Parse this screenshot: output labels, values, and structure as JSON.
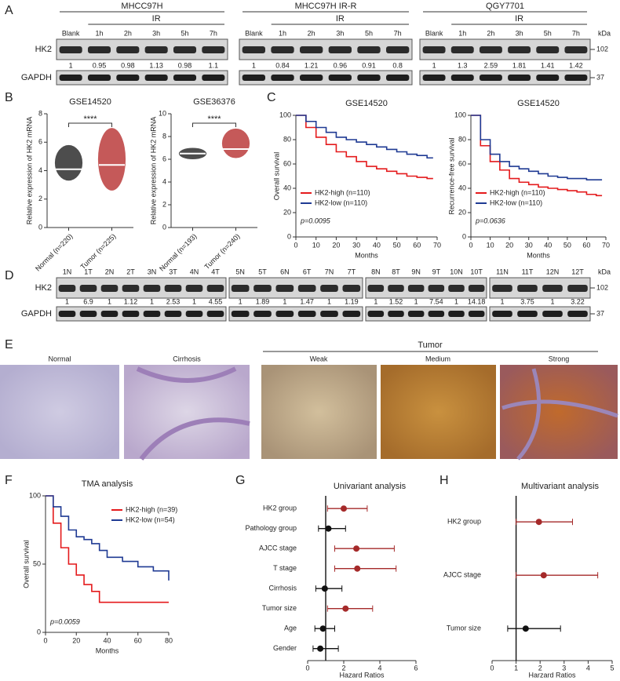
{
  "panels": {
    "A": {
      "label": "A",
      "unit": "kDa",
      "rows": [
        {
          "name": "HK2",
          "size": 102
        },
        {
          "name": "GAPDH",
          "size": 37
        }
      ],
      "groups": [
        {
          "title": "MHCC97H",
          "treatment": "IR",
          "lanes": [
            "Blank",
            "1h",
            "2h",
            "3h",
            "5h",
            "7h"
          ],
          "ratios": [
            1,
            0.95,
            0.98,
            1.13,
            0.98,
            1.1
          ]
        },
        {
          "title": "MHCC97H IR-R",
          "treatment": "IR",
          "lanes": [
            "Blank",
            "1h",
            "2h",
            "3h",
            "5h",
            "7h"
          ],
          "ratios": [
            1,
            0.84,
            1.21,
            0.96,
            0.91,
            0.8
          ]
        },
        {
          "title": "QGY7701",
          "treatment": "IR",
          "lanes": [
            "Blank",
            "1h",
            "2h",
            "3h",
            "5h",
            "7h"
          ],
          "ratios": [
            1,
            1.3,
            2.59,
            1.81,
            1.41,
            1.42
          ]
        }
      ]
    },
    "B": {
      "label": "B",
      "charts": [
        {
          "type": "scatter",
          "title": "GSE14520",
          "y_label": "Relative expression of HK2 mRNA",
          "significance": "****",
          "ylim": [
            0,
            8
          ],
          "yticks": [
            0,
            2,
            4,
            6,
            8
          ],
          "series": [
            {
              "name": "Normal (n=220)",
              "color": "#111111",
              "mean": 4.1,
              "min": 3.3,
              "max": 5.8
            },
            {
              "name": "Tumor (n=225)",
              "color": "#b22222",
              "mean": 4.4,
              "min": 2.6,
              "max": 7.0
            }
          ]
        },
        {
          "type": "scatter",
          "title": "GSE36376",
          "y_label": "Relative expression of HK2 mRNA",
          "significance": "****",
          "ylim": [
            0,
            10
          ],
          "yticks": [
            0,
            2,
            4,
            6,
            8,
            10
          ],
          "series": [
            {
              "name": "Normal (n=193)",
              "color": "#111111",
              "mean": 6.5,
              "min": 6.0,
              "max": 7.0
            },
            {
              "name": "Tumor (n=240)",
              "color": "#b22222",
              "mean": 6.9,
              "min": 6.1,
              "max": 8.7
            }
          ]
        }
      ]
    },
    "C": {
      "label": "C",
      "charts": [
        {
          "type": "line",
          "title": "GSE14520",
          "y_label": "Overall survival",
          "x_label": "Months",
          "p_value": "p=0.0095",
          "xlim": [
            0,
            70
          ],
          "xticks": [
            0,
            10,
            20,
            30,
            40,
            50,
            60,
            70
          ],
          "ylim": [
            0,
            100
          ],
          "yticks": [
            0,
            20,
            40,
            60,
            80,
            100
          ],
          "x": [
            0,
            5,
            10,
            15,
            20,
            25,
            30,
            35,
            40,
            45,
            50,
            55,
            60,
            65,
            68
          ],
          "series": [
            {
              "name": "HK2-high (n=110)",
              "color": "#e41a1c",
              "values": [
                100,
                90,
                82,
                76,
                70,
                66,
                62,
                58,
                56,
                54,
                52,
                50,
                49,
                48,
                48
              ]
            },
            {
              "name": "HK2-low (n=110)",
              "color": "#1f3a93",
              "values": [
                100,
                95,
                90,
                86,
                82,
                80,
                78,
                76,
                74,
                72,
                70,
                68,
                67,
                65,
                65
              ]
            }
          ]
        },
        {
          "type": "line",
          "title": "GSE14520",
          "y_label": "Recurrence-free survival",
          "x_label": "Months",
          "p_value": "p=0.0636",
          "xlim": [
            0,
            70
          ],
          "xticks": [
            0,
            10,
            20,
            30,
            40,
            50,
            60,
            70
          ],
          "ylim": [
            0,
            100
          ],
          "yticks": [
            0,
            20,
            40,
            60,
            80,
            100
          ],
          "x": [
            0,
            5,
            10,
            15,
            20,
            25,
            30,
            35,
            40,
            45,
            50,
            55,
            60,
            65,
            68
          ],
          "series": [
            {
              "name": "HK2-high (n=110)",
              "color": "#e41a1c",
              "values": [
                100,
                75,
                62,
                55,
                48,
                45,
                43,
                41,
                40,
                39,
                38,
                37,
                35,
                34,
                34
              ]
            },
            {
              "name": "HK2-low (n=110)",
              "color": "#1f3a93",
              "values": [
                100,
                80,
                68,
                62,
                58,
                56,
                54,
                52,
                50,
                49,
                48,
                48,
                47,
                47,
                47
              ]
            }
          ]
        }
      ]
    },
    "D": {
      "label": "D",
      "unit": "kDa",
      "rows": [
        {
          "name": "HK2",
          "size": 102
        },
        {
          "name": "GAPDH",
          "size": 37
        }
      ],
      "groups": [
        {
          "lanes": [
            "1N",
            "1T",
            "2N",
            "2T",
            "3N",
            "3T",
            "4N",
            "4T"
          ],
          "ratios": [
            1,
            6.9,
            1,
            1.12,
            1,
            2.53,
            1,
            4.55
          ]
        },
        {
          "lanes": [
            "5N",
            "5T",
            "6N",
            "6T",
            "7N",
            "7T"
          ],
          "ratios": [
            1,
            1.89,
            1,
            1.47,
            1,
            1.19
          ]
        },
        {
          "lanes": [
            "8N",
            "8T",
            "9N",
            "9T",
            "10N",
            "10T"
          ],
          "ratios": [
            1,
            1.52,
            1,
            7.54,
            1,
            14.18
          ]
        },
        {
          "lanes": [
            "11N",
            "11T",
            "12N",
            "12T"
          ],
          "ratios": [
            1,
            3.75,
            1,
            3.22
          ]
        }
      ]
    },
    "E": {
      "label": "E",
      "group": "Tumor",
      "images": [
        "Normal",
        "Cirrhosis",
        "Weak",
        "Medium",
        "Strong"
      ]
    },
    "F": {
      "label": "F",
      "chart": {
        "type": "line",
        "title": "TMA analysis",
        "y_label": "Overall survival",
        "x_label": "Months",
        "p_value": "p=0.0059",
        "xlim": [
          0,
          80
        ],
        "xticks": [
          0,
          20,
          40,
          60,
          80
        ],
        "ylim": [
          0,
          100
        ],
        "yticks": [
          0,
          50,
          100
        ],
        "x": [
          0,
          5,
          10,
          15,
          20,
          25,
          30,
          35,
          40,
          50,
          60,
          70,
          80
        ],
        "series": [
          {
            "name": "HK2-high (n=39)",
            "color": "#e41a1c",
            "values": [
              100,
              80,
              62,
              50,
              42,
              35,
              30,
              22,
              22,
              22,
              22,
              22,
              22
            ]
          },
          {
            "name": "HK2-low (n=54)",
            "color": "#1f3a93",
            "values": [
              100,
              92,
              85,
              75,
              70,
              68,
              65,
              60,
              55,
              52,
              48,
              45,
              38
            ]
          }
        ]
      }
    },
    "G": {
      "label": "G",
      "chart": {
        "type": "forest",
        "title": "Univariant analysis",
        "x_label": "Hazard Ratios",
        "xlim": [
          0,
          6
        ],
        "xticks": [
          0,
          2,
          4,
          6
        ],
        "reference": 1,
        "rows": [
          {
            "name": "HK2 group",
            "hr": 2.0,
            "ci": [
              1.1,
              3.3
            ],
            "color": "#a52a2a"
          },
          {
            "name": "Pathology group",
            "hr": 1.15,
            "ci": [
              0.6,
              2.1
            ],
            "color": "#111111"
          },
          {
            "name": "AJCC stage",
            "hr": 2.7,
            "ci": [
              1.5,
              4.8
            ],
            "color": "#a52a2a"
          },
          {
            "name": "T stage",
            "hr": 2.75,
            "ci": [
              1.5,
              4.9
            ],
            "color": "#a52a2a"
          },
          {
            "name": "Cirrhosis",
            "hr": 0.95,
            "ci": [
              0.45,
              1.9
            ],
            "color": "#111111"
          },
          {
            "name": "Tumor size",
            "hr": 2.1,
            "ci": [
              1.1,
              3.6
            ],
            "color": "#a52a2a"
          },
          {
            "name": "Age",
            "hr": 0.85,
            "ci": [
              0.4,
              1.5
            ],
            "color": "#111111"
          },
          {
            "name": "Gender",
            "hr": 0.7,
            "ci": [
              0.3,
              1.7
            ],
            "color": "#111111"
          }
        ]
      }
    },
    "H": {
      "label": "H",
      "chart": {
        "type": "forest",
        "title": "Multivariant analysis",
        "x_label": "Harzard Ratios",
        "xlim": [
          0,
          5
        ],
        "xticks": [
          0,
          1,
          2,
          3,
          4,
          5
        ],
        "reference": 1,
        "rows": [
          {
            "name": "HK2 group",
            "hr": 1.95,
            "ci": [
              1.0,
              3.35
            ],
            "color": "#a52a2a"
          },
          {
            "name": "AJCC stage",
            "hr": 2.15,
            "ci": [
              1.0,
              4.4
            ],
            "color": "#a52a2a"
          },
          {
            "name": "Tumor size",
            "hr": 1.4,
            "ci": [
              0.65,
              2.85
            ],
            "color": "#111111"
          }
        ]
      }
    }
  }
}
